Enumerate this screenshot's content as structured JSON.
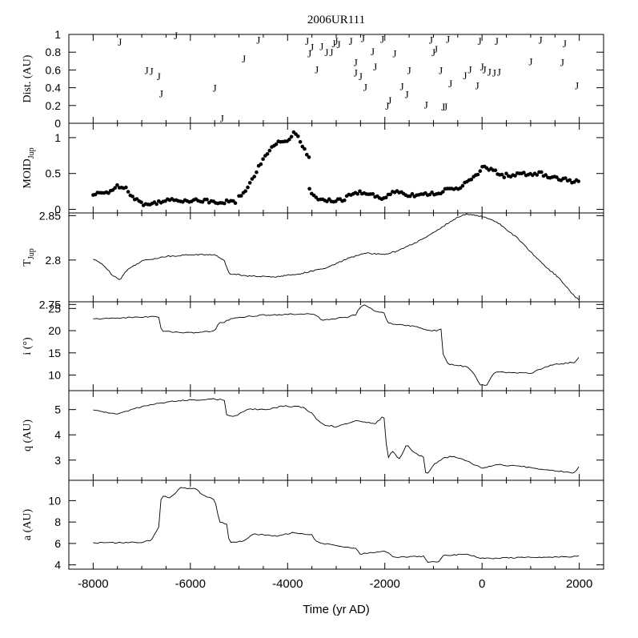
{
  "chart_data": {
    "type": "line",
    "title": "2006UR111",
    "xlabel": "Time (yr AD)",
    "xlim": [
      -8500,
      2500
    ],
    "x_ticks": [
      -8000,
      -6000,
      -4000,
      -2000,
      0,
      2000
    ],
    "x_tick_labels": [
      "-8000",
      "-6000",
      "-4000",
      "-2000",
      "0",
      "2000"
    ],
    "panels": [
      {
        "id": "dist",
        "type": "scatter",
        "ylabel": "Dist. (AU)",
        "ylim": [
          0,
          1
        ],
        "y_ticks": [
          0,
          0.2,
          0.4,
          0.6,
          0.8,
          1
        ],
        "y_tick_labels": [
          "0",
          "0.2",
          "0.4",
          "0.6",
          "0.8",
          "1"
        ],
        "marker": "J",
        "points": [
          [
            -7450,
            0.92
          ],
          [
            -6900,
            0.6
          ],
          [
            -6800,
            0.59
          ],
          [
            -6650,
            0.53
          ],
          [
            -6600,
            0.34
          ],
          [
            -6300,
            0.99
          ],
          [
            -5500,
            0.4
          ],
          [
            -5350,
            0.06
          ],
          [
            -4900,
            0.73
          ],
          [
            -4600,
            0.94
          ],
          [
            -3600,
            0.93
          ],
          [
            -3550,
            0.79
          ],
          [
            -3500,
            0.86
          ],
          [
            -3400,
            0.61
          ],
          [
            -3300,
            0.87
          ],
          [
            -3200,
            0.8
          ],
          [
            -3100,
            0.8
          ],
          [
            -3050,
            0.9
          ],
          [
            -3000,
            0.93
          ],
          [
            -2950,
            0.89
          ],
          [
            -2700,
            0.93
          ],
          [
            -2600,
            0.69
          ],
          [
            -2600,
            0.57
          ],
          [
            -2500,
            0.53
          ],
          [
            -2450,
            0.96
          ],
          [
            -2400,
            0.41
          ],
          [
            -2250,
            0.81
          ],
          [
            -2200,
            0.64
          ],
          [
            -2050,
            0.95
          ],
          [
            -1950,
            0.2
          ],
          [
            -1900,
            0.26
          ],
          [
            -1800,
            0.79
          ],
          [
            -1650,
            0.42
          ],
          [
            -1550,
            0.33
          ],
          [
            -1500,
            0.6
          ],
          [
            -1150,
            0.21
          ],
          [
            -1050,
            0.94
          ],
          [
            -1000,
            0.8
          ],
          [
            -950,
            0.84
          ],
          [
            -850,
            0.6
          ],
          [
            -800,
            0.19
          ],
          [
            -750,
            0.19
          ],
          [
            -700,
            0.95
          ],
          [
            -650,
            0.45
          ],
          [
            -350,
            0.54
          ],
          [
            -250,
            0.61
          ],
          [
            -100,
            0.43
          ],
          [
            -50,
            0.93
          ],
          [
            0,
            0.64
          ],
          [
            50,
            0.61
          ],
          [
            150,
            0.58
          ],
          [
            250,
            0.57
          ],
          [
            300,
            0.93
          ],
          [
            350,
            0.58
          ],
          [
            1000,
            0.7
          ],
          [
            1200,
            0.94
          ],
          [
            1650,
            0.69
          ],
          [
            1700,
            0.9
          ],
          [
            1950,
            0.43
          ]
        ]
      },
      {
        "id": "moid",
        "type": "scatter",
        "ylabel": "MOID",
        "ylabel_sub": "Jup",
        "ylim": [
          -0.05,
          1.2
        ],
        "y_ticks": [
          0,
          0.5,
          1
        ],
        "y_tick_labels": [
          "0",
          "0.5",
          "1"
        ],
        "marker": "dot",
        "step_ms": 45,
        "segments": [
          [
            [
              -8000,
              0.2
            ],
            [
              -7700,
              0.24
            ],
            [
              -7550,
              0.3
            ],
            [
              -7450,
              0.33
            ],
            [
              -7350,
              0.32
            ],
            [
              -7250,
              0.22
            ],
            [
              -7100,
              0.14
            ],
            [
              -7000,
              0.08
            ],
            [
              -6850,
              0.06
            ],
            [
              -6600,
              0.12
            ],
            [
              -6000,
              0.13
            ],
            [
              -5500,
              0.11
            ],
            [
              -5050,
              0.1
            ]
          ],
          [
            [
              -5000,
              0.18
            ],
            [
              -4800,
              0.32
            ],
            [
              -4600,
              0.6
            ],
            [
              -4400,
              0.8
            ],
            [
              -4200,
              0.92
            ],
            [
              -4000,
              0.95
            ],
            [
              -3850,
              1.08
            ],
            [
              -3750,
              0.95
            ],
            [
              -3550,
              0.7
            ]
          ],
          [
            [
              -3550,
              0.26
            ],
            [
              -3400,
              0.15
            ],
            [
              -3200,
              0.12
            ],
            [
              -2900,
              0.12
            ],
            [
              -2700,
              0.2
            ],
            [
              -2500,
              0.24
            ],
            [
              -2300,
              0.22
            ],
            [
              -2100,
              0.14
            ],
            [
              -2000,
              0.16
            ],
            [
              -1800,
              0.26
            ],
            [
              -1500,
              0.2
            ],
            [
              -1000,
              0.22
            ],
            [
              -500,
              0.3
            ],
            [
              -200,
              0.42
            ],
            [
              -50,
              0.52
            ],
            [
              0,
              0.59
            ],
            [
              200,
              0.55
            ],
            [
              400,
              0.47
            ],
            [
              800,
              0.49
            ],
            [
              1200,
              0.5
            ],
            [
              1500,
              0.44
            ],
            [
              2000,
              0.38
            ]
          ]
        ]
      },
      {
        "id": "tjup",
        "type": "line",
        "ylabel": "T",
        "ylabel_sub": "Jup",
        "ylim": [
          2.753,
          2.853
        ],
        "y_ticks": [
          2.75,
          2.8,
          2.85
        ],
        "y_tick_labels": [
          "2.75",
          "2.8",
          "2.85"
        ],
        "step_ms": 30,
        "segments": [
          [
            [
              -8000,
              2.801
            ],
            [
              -7800,
              2.795
            ],
            [
              -7600,
              2.783
            ],
            [
              -7450,
              2.778
            ],
            [
              -7300,
              2.789
            ],
            [
              -7000,
              2.799
            ],
            [
              -6500,
              2.804
            ],
            [
              -6000,
              2.806
            ],
            [
              -5500,
              2.806
            ],
            [
              -5300,
              2.799
            ],
            [
              -5200,
              2.785
            ],
            [
              -4800,
              2.782
            ],
            [
              -4300,
              2.781
            ],
            [
              -3800,
              2.784
            ],
            [
              -3200,
              2.791
            ],
            [
              -2800,
              2.801
            ],
            [
              -2400,
              2.808
            ],
            [
              -2000,
              2.806
            ],
            [
              -1700,
              2.811
            ],
            [
              -1200,
              2.824
            ],
            [
              -800,
              2.838
            ],
            [
              -500,
              2.848
            ],
            [
              -300,
              2.852
            ],
            [
              0,
              2.849
            ],
            [
              300,
              2.843
            ],
            [
              700,
              2.826
            ],
            [
              1200,
              2.798
            ],
            [
              1600,
              2.779
            ],
            [
              1850,
              2.762
            ],
            [
              2000,
              2.755
            ]
          ]
        ]
      },
      {
        "id": "incl",
        "type": "line",
        "ylabel": "i (°)",
        "ylim": [
          6.5,
          26.5
        ],
        "y_ticks": [
          10,
          15,
          20,
          25
        ],
        "y_tick_labels": [
          "10",
          "15",
          "20",
          "25"
        ],
        "step_ms": 45,
        "segments": [
          [
            [
              -8000,
              22.6
            ],
            [
              -7400,
              22.9
            ],
            [
              -6700,
              23.2
            ],
            [
              -6620,
              22.7
            ],
            [
              -6600,
              19.9
            ],
            [
              -6000,
              19.5
            ],
            [
              -5500,
              19.9
            ],
            [
              -5420,
              21.7
            ],
            [
              -5300,
              22.0
            ],
            [
              -5100,
              22.9
            ],
            [
              -4500,
              23.5
            ],
            [
              -3600,
              23.8
            ],
            [
              -3400,
              23.4
            ],
            [
              -3300,
              22.4
            ],
            [
              -2800,
              23.0
            ],
            [
              -2600,
              23.6
            ],
            [
              -2500,
              25.4
            ],
            [
              -2400,
              25.8
            ],
            [
              -2200,
              24.4
            ],
            [
              -2000,
              24.0
            ],
            [
              -1950,
              21.7
            ],
            [
              -1400,
              21.0
            ],
            [
              -1200,
              20.3
            ],
            [
              -900,
              19.9
            ],
            [
              -850,
              21.0
            ],
            [
              -800,
              14.8
            ],
            [
              -700,
              12.4
            ],
            [
              -300,
              11.9
            ],
            [
              -150,
              10.0
            ],
            [
              -50,
              7.9
            ],
            [
              100,
              7.7
            ],
            [
              200,
              9.8
            ],
            [
              300,
              10.7
            ],
            [
              1000,
              10.4
            ],
            [
              1300,
              11.8
            ],
            [
              1500,
              12.4
            ],
            [
              1900,
              12.9
            ],
            [
              2000,
              14.1
            ]
          ]
        ]
      },
      {
        "id": "q",
        "type": "line",
        "ylabel": "q (AU)",
        "ylim": [
          2.2,
          5.75
        ],
        "y_ticks": [
          3,
          4,
          5
        ],
        "y_tick_labels": [
          "3",
          "4",
          "5"
        ],
        "step_ms": 45,
        "segments": [
          [
            [
              -8000,
              4.98
            ],
            [
              -7500,
              4.82
            ],
            [
              -7000,
              5.12
            ],
            [
              -6500,
              5.3
            ],
            [
              -6000,
              5.38
            ],
            [
              -5500,
              5.42
            ],
            [
              -5300,
              5.37
            ],
            [
              -5250,
              4.75
            ],
            [
              -5100,
              4.72
            ],
            [
              -4800,
              5.02
            ],
            [
              -4400,
              5.0
            ],
            [
              -4100,
              5.14
            ],
            [
              -3700,
              5.1
            ],
            [
              -3500,
              4.85
            ],
            [
              -3300,
              4.42
            ],
            [
              -3000,
              4.32
            ],
            [
              -2600,
              4.55
            ],
            [
              -2400,
              4.5
            ],
            [
              -2200,
              4.45
            ],
            [
              -2050,
              4.7
            ],
            [
              -2000,
              4.62
            ],
            [
              -1950,
              3.0
            ],
            [
              -1850,
              3.35
            ],
            [
              -1700,
              3.05
            ],
            [
              -1550,
              3.62
            ],
            [
              -1400,
              3.3
            ],
            [
              -1200,
              3.1
            ],
            [
              -1150,
              2.35
            ],
            [
              -1000,
              2.82
            ],
            [
              -800,
              3.08
            ],
            [
              -600,
              3.15
            ],
            [
              -300,
              2.95
            ],
            [
              0,
              2.68
            ],
            [
              300,
              2.82
            ],
            [
              800,
              2.75
            ],
            [
              1500,
              2.58
            ],
            [
              1900,
              2.5
            ],
            [
              2000,
              2.75
            ]
          ]
        ]
      },
      {
        "id": "a",
        "type": "line",
        "ylabel": "a (AU)",
        "ylim": [
          3.6,
          11.9
        ],
        "y_ticks": [
          4,
          6,
          8,
          10
        ],
        "y_tick_labels": [
          "4",
          "6",
          "8",
          "10"
        ],
        "step_ms": 45,
        "segments": [
          [
            [
              -8000,
              6.05
            ],
            [
              -7000,
              6.1
            ],
            [
              -6800,
              6.3
            ],
            [
              -6650,
              7.6
            ],
            [
              -6600,
              10.4
            ],
            [
              -6400,
              10.3
            ],
            [
              -6200,
              11.2
            ],
            [
              -5900,
              11.1
            ],
            [
              -5700,
              10.4
            ],
            [
              -5500,
              10.1
            ],
            [
              -5400,
              8.0
            ],
            [
              -5250,
              7.8
            ],
            [
              -5200,
              6.1
            ],
            [
              -4900,
              6.2
            ],
            [
              -4700,
              6.9
            ],
            [
              -4200,
              6.7
            ],
            [
              -3900,
              7.0
            ],
            [
              -3500,
              6.8
            ],
            [
              -3400,
              6.1
            ],
            [
              -3000,
              5.8
            ],
            [
              -2600,
              5.5
            ],
            [
              -2500,
              5.0
            ],
            [
              -2000,
              5.3
            ],
            [
              -1800,
              4.7
            ],
            [
              -1200,
              4.8
            ],
            [
              -1100,
              4.2
            ],
            [
              -900,
              4.3
            ],
            [
              -800,
              4.9
            ],
            [
              -300,
              5.0
            ],
            [
              0,
              4.6
            ],
            [
              1000,
              4.7
            ],
            [
              2000,
              4.8
            ]
          ]
        ]
      }
    ]
  }
}
